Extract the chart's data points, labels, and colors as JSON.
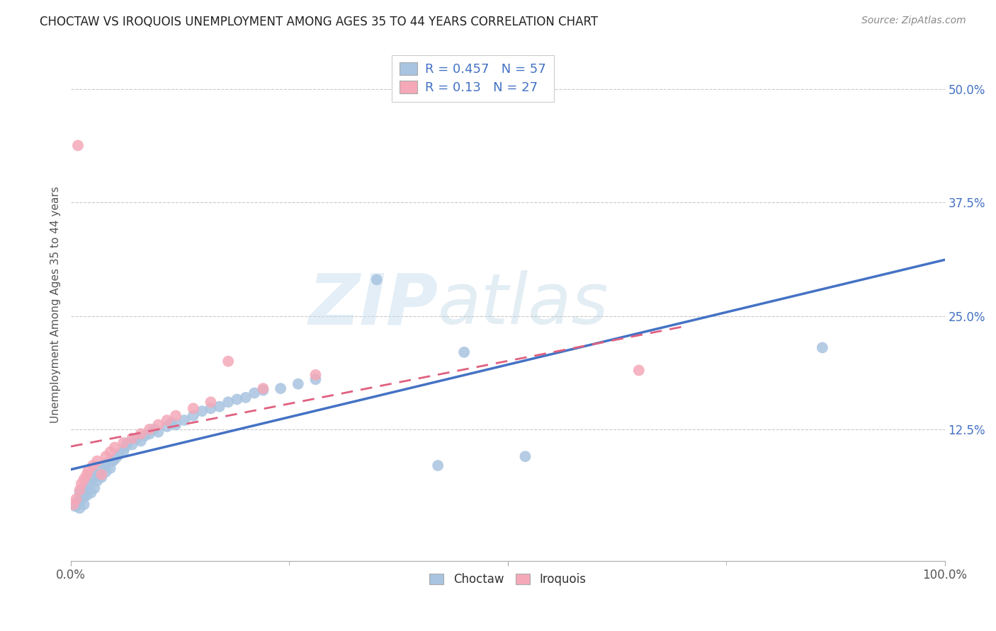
{
  "title": "CHOCTAW VS IROQUOIS UNEMPLOYMENT AMONG AGES 35 TO 44 YEARS CORRELATION CHART",
  "source": "Source: ZipAtlas.com",
  "ylabel": "Unemployment Among Ages 35 to 44 years",
  "ytick_labels": [
    "12.5%",
    "25.0%",
    "37.5%",
    "50.0%"
  ],
  "ytick_values": [
    0.125,
    0.25,
    0.375,
    0.5
  ],
  "xlim": [
    0,
    1.0
  ],
  "ylim": [
    -0.02,
    0.545
  ],
  "choctaw_R": 0.457,
  "choctaw_N": 57,
  "iroquois_R": 0.13,
  "iroquois_N": 27,
  "choctaw_color": "#a8c4e0",
  "iroquois_color": "#f4a8b8",
  "choctaw_line_color": "#4472c4",
  "iroquois_line_color": "#e06080",
  "legend_color": "#4472c4",
  "watermark_zip": "ZIP",
  "watermark_atlas": "atlas",
  "background_color": "#ffffff",
  "choctaw_x": [
    0.005,
    0.008,
    0.01,
    0.01,
    0.012,
    0.014,
    0.015,
    0.016,
    0.018,
    0.02,
    0.022,
    0.023,
    0.025,
    0.027,
    0.03,
    0.03,
    0.032,
    0.035,
    0.038,
    0.04,
    0.042,
    0.045,
    0.048,
    0.05,
    0.053,
    0.055,
    0.06,
    0.062,
    0.065,
    0.07,
    0.075,
    0.08,
    0.085,
    0.09,
    0.095,
    0.1,
    0.11,
    0.115,
    0.12,
    0.13,
    0.14,
    0.15,
    0.16,
    0.17,
    0.18,
    0.19,
    0.2,
    0.21,
    0.22,
    0.24,
    0.26,
    0.28,
    0.35,
    0.42,
    0.45,
    0.52,
    0.86
  ],
  "choctaw_y": [
    0.04,
    0.045,
    0.038,
    0.055,
    0.048,
    0.05,
    0.042,
    0.06,
    0.052,
    0.058,
    0.065,
    0.055,
    0.07,
    0.06,
    0.075,
    0.068,
    0.08,
    0.072,
    0.085,
    0.078,
    0.088,
    0.082,
    0.09,
    0.092,
    0.095,
    0.098,
    0.1,
    0.105,
    0.11,
    0.108,
    0.115,
    0.112,
    0.118,
    0.12,
    0.125,
    0.122,
    0.128,
    0.132,
    0.13,
    0.135,
    0.14,
    0.145,
    0.148,
    0.15,
    0.155,
    0.158,
    0.16,
    0.165,
    0.168,
    0.17,
    0.175,
    0.18,
    0.29,
    0.085,
    0.21,
    0.095,
    0.215
  ],
  "iroquois_x": [
    0.003,
    0.006,
    0.008,
    0.01,
    0.012,
    0.015,
    0.018,
    0.02,
    0.025,
    0.03,
    0.035,
    0.04,
    0.045,
    0.05,
    0.06,
    0.07,
    0.08,
    0.09,
    0.1,
    0.11,
    0.12,
    0.14,
    0.16,
    0.18,
    0.22,
    0.28,
    0.65
  ],
  "iroquois_y": [
    0.042,
    0.048,
    0.438,
    0.058,
    0.065,
    0.07,
    0.075,
    0.08,
    0.085,
    0.09,
    0.075,
    0.095,
    0.1,
    0.105,
    0.11,
    0.115,
    0.12,
    0.125,
    0.13,
    0.135,
    0.14,
    0.148,
    0.155,
    0.2,
    0.17,
    0.185,
    0.19
  ]
}
